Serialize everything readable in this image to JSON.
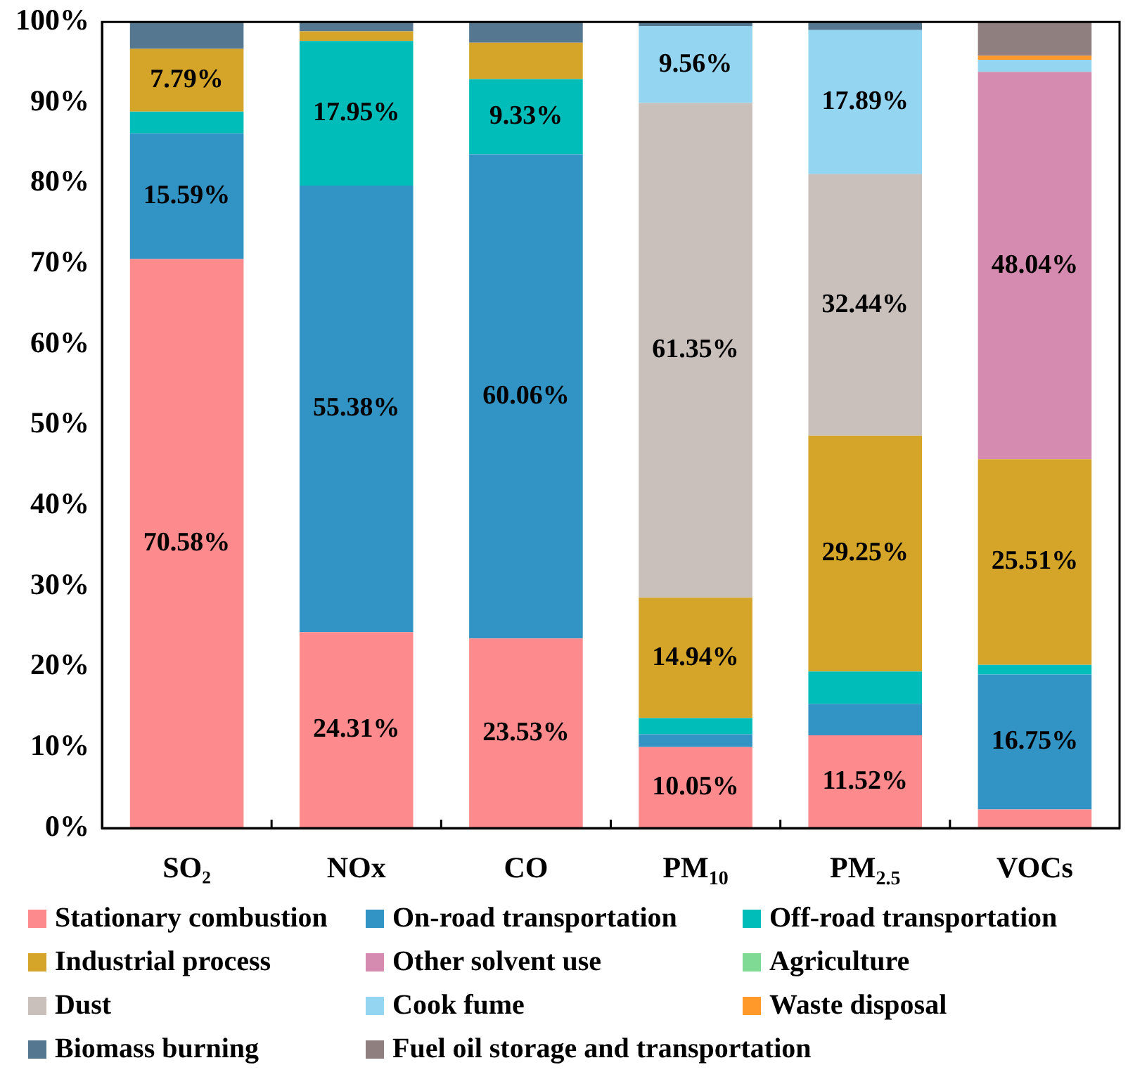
{
  "chart_data": {
    "type": "bar",
    "stacked": true,
    "categories": [
      "SO₂",
      "NOx",
      "CO",
      "PM$_{10}$",
      "PM$_{2.5}$",
      "VOCs"
    ],
    "ylim": [
      0,
      100
    ],
    "yticks": [
      {
        "value": 0,
        "label": "0%"
      },
      {
        "value": 10,
        "label": "10%"
      },
      {
        "value": 20,
        "label": "20%"
      },
      {
        "value": 30,
        "label": "30%"
      },
      {
        "value": 40,
        "label": "40%"
      },
      {
        "value": 50,
        "label": "50%"
      },
      {
        "value": 60,
        "label": "60%"
      },
      {
        "value": 70,
        "label": "70%"
      },
      {
        "value": 80,
        "label": "80%"
      },
      {
        "value": 90,
        "label": "90%"
      },
      {
        "value": 100,
        "label": "100%"
      }
    ],
    "grid": false,
    "legend": "bottom",
    "series": [
      {
        "name": "Stationary combustion",
        "color": "#fd8a8c",
        "values": [
          70.58,
          24.31,
          23.53,
          10.05,
          11.52,
          2.3
        ],
        "value_labels": [
          "70.58%",
          "24.31%",
          "23.53%",
          "10.05%",
          "11.52%",
          null
        ]
      },
      {
        "name": "On-road transportation",
        "color": "#3294c4",
        "values": [
          15.59,
          55.38,
          60.06,
          1.6,
          3.9,
          16.75
        ],
        "value_labels": [
          "15.59%",
          "55.38%",
          "60.06%",
          null,
          null,
          "16.75%"
        ]
      },
      {
        "name": "Off-road transportation",
        "color": "#00bdb9",
        "values": [
          2.7,
          17.95,
          9.33,
          2.0,
          4.0,
          1.2
        ],
        "value_labels": [
          null,
          "17.95%",
          "9.33%",
          null,
          null,
          null
        ]
      },
      {
        "name": "Industrial process",
        "color": "#d4a528",
        "values": [
          7.79,
          1.2,
          4.5,
          14.94,
          29.25,
          25.51
        ],
        "value_labels": [
          "7.79%",
          null,
          null,
          "14.94%",
          "29.25%",
          "25.51%"
        ]
      },
      {
        "name": "Other solvent use",
        "color": "#d48baf",
        "values": [
          0,
          0,
          0,
          0,
          0,
          48.04
        ],
        "value_labels": [
          null,
          null,
          null,
          null,
          null,
          "48.04%"
        ]
      },
      {
        "name": "Agriculture",
        "color": "#7fdb94",
        "values": [
          0,
          0,
          0,
          0,
          0,
          0
        ]
      },
      {
        "name": "Dust",
        "color": "#c9bfbb",
        "values": [
          0,
          0,
          0,
          61.35,
          32.44,
          0
        ],
        "value_labels": [
          null,
          null,
          null,
          "61.35%",
          "32.44%",
          null
        ]
      },
      {
        "name": "Cook fume",
        "color": "#94d5f1",
        "values": [
          0,
          0,
          0,
          9.56,
          17.89,
          1.5
        ],
        "value_labels": [
          null,
          null,
          null,
          "9.56%",
          "17.89%",
          null
        ]
      },
      {
        "name": "Waste disposal",
        "color": "#ff9a2a",
        "values": [
          0,
          0,
          0,
          0,
          0,
          0.5
        ]
      },
      {
        "name": "Biomass burning",
        "color": "#557890",
        "values": [
          3.3,
          1.2,
          2.6,
          0.5,
          1.0,
          0
        ]
      },
      {
        "name": "Fuel oil storage and transportation",
        "color": "#8f7f7f",
        "values": [
          0,
          0,
          0,
          0,
          0,
          4.2
        ]
      }
    ]
  }
}
